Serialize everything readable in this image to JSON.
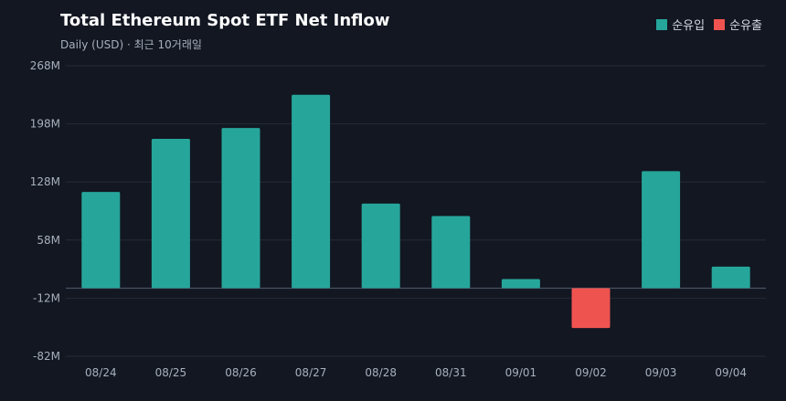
{
  "chart_data": {
    "type": "bar",
    "title": "Total Ethereum Spot ETF Net Inflow",
    "subtitle": "Daily (USD) · 최근 10거래일",
    "categories": [
      "08/24",
      "08/25",
      "08/26",
      "08/27",
      "08/28",
      "08/31",
      "09/01",
      "09/02",
      "09/03",
      "09/04"
    ],
    "values": [
      116,
      180,
      193,
      233,
      102,
      87,
      11,
      -48,
      141,
      26
    ],
    "unit": "M",
    "yticks": [
      -82,
      -12,
      58,
      128,
      198,
      268
    ],
    "ylim": [
      -82,
      268
    ],
    "legend": [
      {
        "label": "순유입",
        "color": "#26a69a"
      },
      {
        "label": "순유출",
        "color": "#ef5350"
      }
    ],
    "legend_position": "top-right",
    "grid": true
  }
}
